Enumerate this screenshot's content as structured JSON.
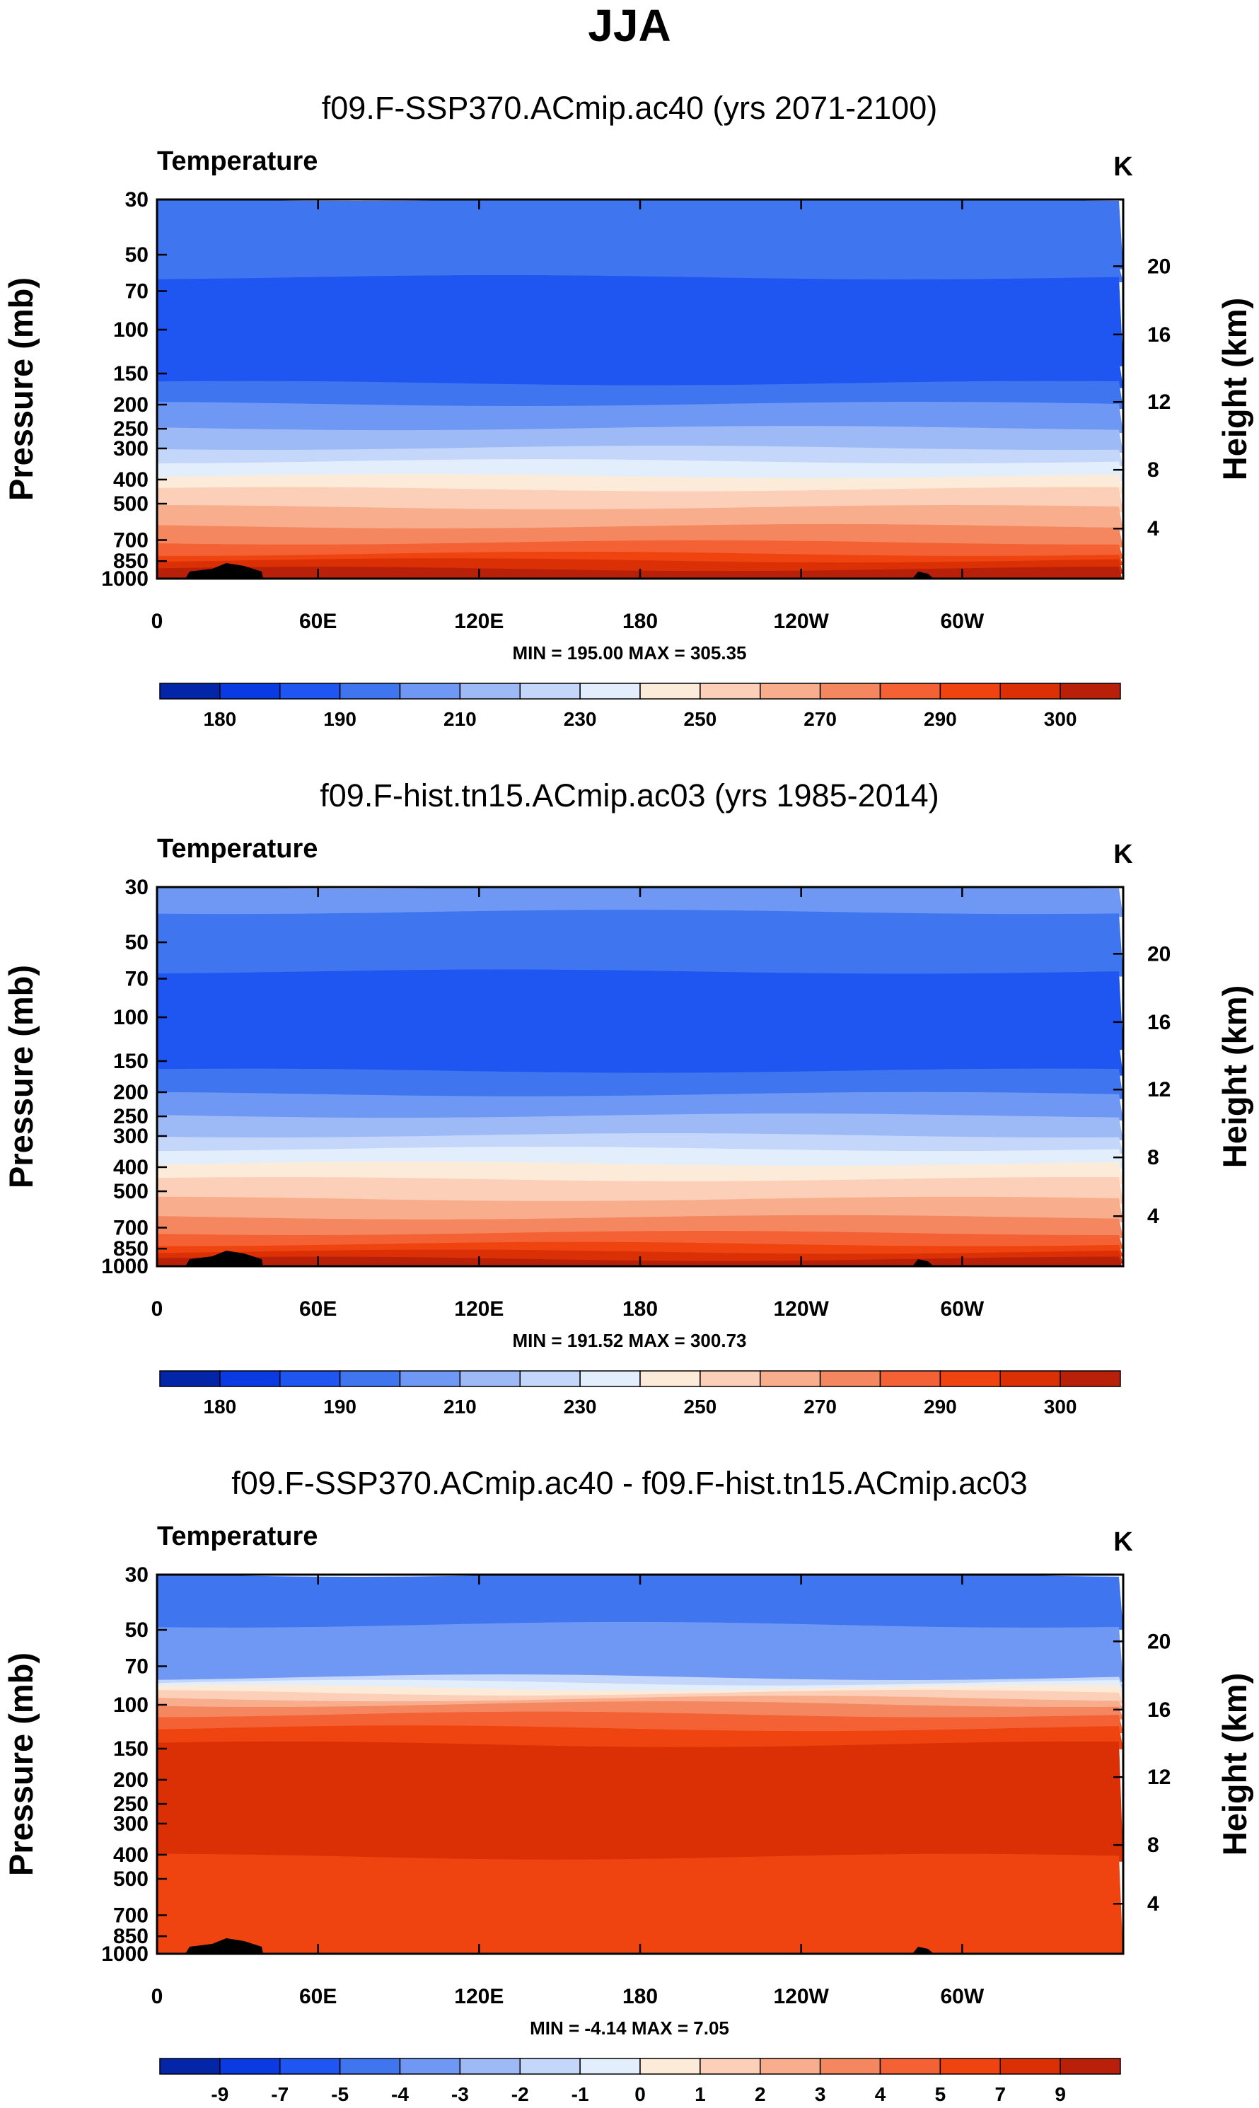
{
  "title": "JJA",
  "colors": {
    "abs_palette": [
      "#020a6e",
      "#0326a8",
      "#0a3be2",
      "#1f55f0",
      "#3f75ef",
      "#6f97f4",
      "#9dbaf6",
      "#c4d7fa",
      "#e3eefc",
      "#fdebd9",
      "#fcd0b8",
      "#f8ae8c",
      "#f58760",
      "#f46134",
      "#ef4410",
      "#db3006",
      "#b8200a",
      "#800a0a"
    ],
    "land": "#000000"
  },
  "chart_data": [
    {
      "type": "heatmap",
      "title": "f09.F-SSP370.ACmip.ac40 (yrs 2071-2100)",
      "variable": "Temperature",
      "units": "K",
      "ylabel": "Pressure (mb)",
      "ylabel_right": "Height (km)",
      "y_ticks": [
        "30",
        "50",
        "70",
        "100",
        "150",
        "200",
        "250",
        "300",
        "400",
        "500",
        "700",
        "850",
        "1000"
      ],
      "y_right_ticks": [
        "20",
        "16",
        "12",
        "8",
        "4"
      ],
      "x_ticks": [
        "0",
        "60E",
        "120E",
        "180",
        "120W",
        "60W"
      ],
      "min_max": "MIN = 195.00  MAX = 305.35",
      "min": 195.0,
      "max": 305.35,
      "colorbar_labels": [
        "180",
        "190",
        "210",
        "230",
        "250",
        "270",
        "290",
        "300"
      ],
      "levels": [
        30,
        50,
        70,
        100,
        150,
        200,
        250,
        300,
        400,
        500,
        700,
        850,
        1000
      ],
      "zonal_bands_from_top": [
        4,
        4,
        3,
        3,
        4,
        5,
        6,
        7,
        8,
        9,
        10,
        11,
        12,
        13,
        14,
        15,
        16
      ],
      "band_boundaries_mb": [
        30,
        55,
        62,
        135,
        165,
        200,
        250,
        300,
        340,
        390,
        440,
        520,
        620,
        720,
        800,
        850,
        920,
        1000
      ]
    },
    {
      "type": "heatmap",
      "title": "f09.F-hist.tn15.ACmip.ac03 (yrs 1985-2014)",
      "variable": "Temperature",
      "units": "K",
      "ylabel": "Pressure (mb)",
      "ylabel_right": "Height (km)",
      "y_ticks": [
        "30",
        "50",
        "70",
        "100",
        "150",
        "200",
        "250",
        "300",
        "400",
        "500",
        "700",
        "850",
        "1000"
      ],
      "y_right_ticks": [
        "20",
        "16",
        "12",
        "8",
        "4"
      ],
      "x_ticks": [
        "0",
        "60E",
        "120E",
        "180",
        "120W",
        "60W"
      ],
      "min_max": "MIN = 191.52  MAX = 300.73",
      "min": 191.52,
      "max": 300.73,
      "colorbar_labels": [
        "180",
        "190",
        "210",
        "230",
        "250",
        "270",
        "290",
        "300"
      ],
      "band_boundaries_mb": [
        30,
        38,
        66,
        130,
        165,
        205,
        250,
        300,
        340,
        390,
        450,
        540,
        640,
        740,
        820,
        880,
        940,
        1000
      ],
      "zonal_bands_from_top": [
        5,
        4,
        3,
        3,
        4,
        5,
        6,
        7,
        8,
        9,
        10,
        11,
        12,
        13,
        14,
        15,
        16
      ]
    },
    {
      "type": "heatmap",
      "title": "f09.F-SSP370.ACmip.ac40 - f09.F-hist.tn15.ACmip.ac03",
      "variable": "Temperature",
      "units": "K",
      "ylabel": "Pressure (mb)",
      "ylabel_right": "Height (km)",
      "y_ticks": [
        "30",
        "50",
        "70",
        "100",
        "150",
        "200",
        "250",
        "300",
        "400",
        "500",
        "700",
        "850",
        "1000"
      ],
      "y_right_ticks": [
        "20",
        "16",
        "12",
        "8",
        "4"
      ],
      "x_ticks": [
        "0",
        "60E",
        "120E",
        "180",
        "120W",
        "60W"
      ],
      "min_max": "MIN =  -4.14  MAX =   7.05",
      "min": -4.14,
      "max": 7.05,
      "colorbar_labels": [
        "-9",
        "-7",
        "-5",
        "-4",
        "-3",
        "-2",
        "-1",
        "0",
        "1",
        "2",
        "3",
        "4",
        "5",
        "7",
        "9"
      ],
      "band_boundaries_mb": [
        30,
        48,
        78,
        82,
        86,
        90,
        95,
        100,
        110,
        125,
        145,
        410,
        1000
      ],
      "zonal_bands_from_top": [
        4,
        5,
        7,
        8,
        9,
        10,
        11,
        12,
        13,
        14,
        15,
        14
      ]
    }
  ]
}
